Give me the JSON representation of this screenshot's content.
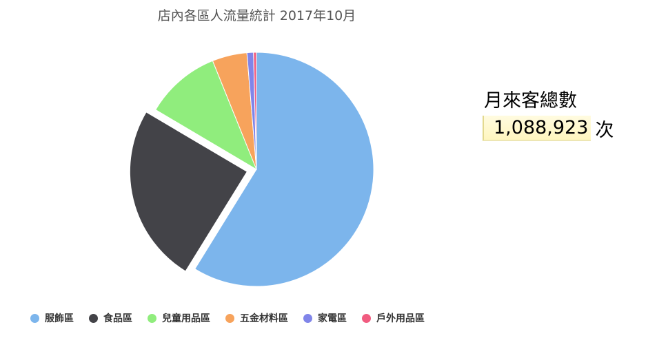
{
  "chart_data": {
    "type": "pie",
    "title": "店內各區人流量統計 2017年10月",
    "categories": [
      "服飾區",
      "食品區",
      "兒童用品區",
      "五金材料區",
      "家電區",
      "戶外用品區"
    ],
    "values": [
      58.8,
      24.7,
      10.4,
      4.8,
      0.9,
      0.4
    ],
    "colors": [
      "#7cb5ec",
      "#434348",
      "#90ed7d",
      "#f7a35c",
      "#8085e9",
      "#f15c80"
    ],
    "exploded": "食品區",
    "legend": "bottom"
  },
  "summary": {
    "heading": "月來客總數",
    "value": "1,088,923",
    "unit": "次"
  }
}
